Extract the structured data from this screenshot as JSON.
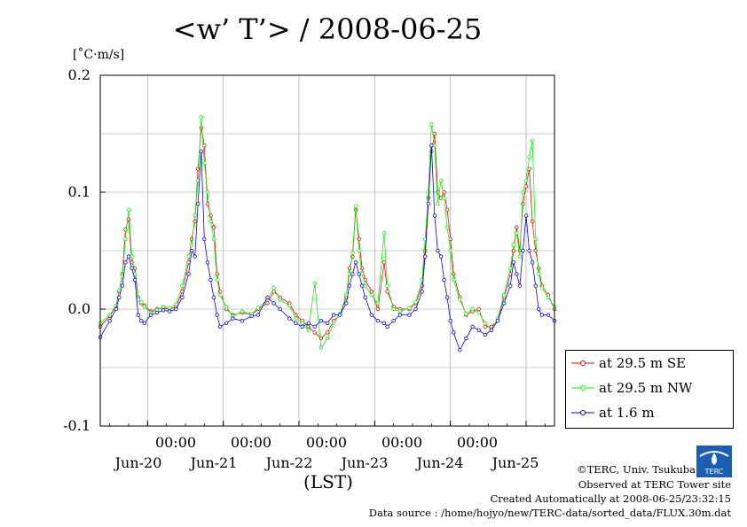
{
  "title": "<w’ T’> / 2008-06-25",
  "chart_data": {
    "type": "line",
    "title": "<w’ T’> / 2008-06-25",
    "ylabel": "[˚C·m/s]",
    "xlabel": "(LST)",
    "ylim": [
      -0.1,
      0.2
    ],
    "yticks": [
      "0.2",
      "0.1",
      "0.0",
      "-0.1"
    ],
    "ytick_values": [
      0.2,
      0.1,
      0.0,
      -0.1
    ],
    "xlim": [
      0,
      144
    ],
    "x_unit": "hours since 2008-06-19 09:00",
    "xtick_time_label": "00:00",
    "xticks": [
      {
        "hour": 15,
        "time": "00:00",
        "date": "Jun-20"
      },
      {
        "hour": 39,
        "time": "00:00",
        "date": "Jun-21"
      },
      {
        "hour": 63,
        "time": "00:00",
        "date": "Jun-22"
      },
      {
        "hour": 87,
        "time": "00:00",
        "date": "Jun-23"
      },
      {
        "hour": 111,
        "time": "00:00",
        "date": "Jun-24"
      },
      {
        "hour": 135,
        "time": "00:00",
        "date": "Jun-25"
      }
    ],
    "grid": true,
    "legend_position": "right-bottom",
    "series": [
      {
        "name": "at 29.5 m SE",
        "color": "#ff0000",
        "points": [
          [
            0,
            -0.015
          ],
          [
            3,
            -0.006
          ],
          [
            5,
            0.002
          ],
          [
            6,
            0.015
          ],
          [
            7,
            0.03
          ],
          [
            8,
            0.068
          ],
          [
            9,
            0.077
          ],
          [
            10,
            0.04
          ],
          [
            11,
            0.035
          ],
          [
            12,
            0.01
          ],
          [
            13,
            0.005
          ],
          [
            14,
            0.003
          ],
          [
            16,
            -0.002
          ],
          [
            18,
            0.0
          ],
          [
            20,
            0.001
          ],
          [
            22,
            0.0
          ],
          [
            24,
            0.002
          ],
          [
            26,
            0.015
          ],
          [
            28,
            0.04
          ],
          [
            29,
            0.06
          ],
          [
            30,
            0.075
          ],
          [
            31,
            0.12
          ],
          [
            32,
            0.155
          ],
          [
            33,
            0.14
          ],
          [
            34,
            0.09
          ],
          [
            35,
            0.08
          ],
          [
            36,
            0.07
          ],
          [
            37,
            0.03
          ],
          [
            38,
            0.015
          ],
          [
            40,
            0.0
          ],
          [
            42,
            -0.005
          ],
          [
            45,
            -0.003
          ],
          [
            48,
            -0.005
          ],
          [
            50,
            0.0
          ],
          [
            53,
            0.005
          ],
          [
            55,
            0.015
          ],
          [
            57,
            0.01
          ],
          [
            60,
            0.005
          ],
          [
            62,
            -0.005
          ],
          [
            64,
            -0.01
          ],
          [
            66,
            -0.015
          ],
          [
            68,
            -0.02
          ],
          [
            70,
            -0.025
          ],
          [
            72,
            -0.02
          ],
          [
            74,
            -0.01
          ],
          [
            76,
            -0.005
          ],
          [
            78,
            0.01
          ],
          [
            79,
            0.035
          ],
          [
            80,
            0.045
          ],
          [
            81,
            0.085
          ],
          [
            82,
            0.06
          ],
          [
            83,
            0.035
          ],
          [
            84,
            0.025
          ],
          [
            86,
            0.015
          ],
          [
            88,
            0.0
          ],
          [
            90,
            0.04
          ],
          [
            91,
            0.015
          ],
          [
            93,
            0.002
          ],
          [
            95,
            0.0
          ],
          [
            98,
            0.0
          ],
          [
            100,
            0.005
          ],
          [
            102,
            0.02
          ],
          [
            103,
            0.05
          ],
          [
            104,
            0.095
          ],
          [
            105,
            0.135
          ],
          [
            106,
            0.15
          ],
          [
            107,
            0.1
          ],
          [
            108,
            0.095
          ],
          [
            109,
            0.1
          ],
          [
            110,
            0.085
          ],
          [
            111,
            0.06
          ],
          [
            112,
            0.03
          ],
          [
            114,
            0.01
          ],
          [
            116,
            -0.005
          ],
          [
            118,
            -0.002
          ],
          [
            120,
            0.0
          ],
          [
            122,
            -0.015
          ],
          [
            124,
            -0.015
          ],
          [
            126,
            -0.01
          ],
          [
            128,
            0.01
          ],
          [
            130,
            0.03
          ],
          [
            131,
            0.05
          ],
          [
            132,
            0.07
          ],
          [
            133,
            0.05
          ],
          [
            134,
            0.09
          ],
          [
            135,
            0.105
          ],
          [
            136,
            0.12
          ],
          [
            137,
            0.075
          ],
          [
            138,
            0.05
          ],
          [
            139,
            0.035
          ],
          [
            140,
            0.02
          ],
          [
            142,
            0.012
          ],
          [
            144,
            0.0
          ]
        ]
      },
      {
        "name": "at 29.5 m NW",
        "color": "#00ff00",
        "points": [
          [
            0,
            -0.012
          ],
          [
            3,
            -0.005
          ],
          [
            5,
            0.003
          ],
          [
            6,
            0.016
          ],
          [
            7,
            0.028
          ],
          [
            8,
            0.06
          ],
          [
            9,
            0.085
          ],
          [
            10,
            0.045
          ],
          [
            11,
            0.03
          ],
          [
            12,
            0.008
          ],
          [
            13,
            0.006
          ],
          [
            14,
            0.002
          ],
          [
            16,
            -0.003
          ],
          [
            18,
            -0.001
          ],
          [
            20,
            0.002
          ],
          [
            22,
            0.001
          ],
          [
            24,
            0.004
          ],
          [
            26,
            0.02
          ],
          [
            28,
            0.045
          ],
          [
            29,
            0.055
          ],
          [
            30,
            0.08
          ],
          [
            31,
            0.11
          ],
          [
            32,
            0.164
          ],
          [
            33,
            0.125
          ],
          [
            34,
            0.1
          ],
          [
            35,
            0.075
          ],
          [
            36,
            0.06
          ],
          [
            37,
            0.025
          ],
          [
            38,
            0.012
          ],
          [
            40,
            0.002
          ],
          [
            42,
            -0.006
          ],
          [
            45,
            -0.002
          ],
          [
            48,
            -0.004
          ],
          [
            50,
            0.001
          ],
          [
            53,
            0.008
          ],
          [
            55,
            0.018
          ],
          [
            57,
            0.008
          ],
          [
            60,
            0.003
          ],
          [
            62,
            -0.008
          ],
          [
            64,
            -0.012
          ],
          [
            66,
            -0.018
          ],
          [
            68,
            0.022
          ],
          [
            70,
            -0.033
          ],
          [
            72,
            -0.025
          ],
          [
            74,
            -0.012
          ],
          [
            76,
            -0.004
          ],
          [
            78,
            0.012
          ],
          [
            79,
            0.03
          ],
          [
            80,
            0.048
          ],
          [
            81,
            0.088
          ],
          [
            82,
            0.05
          ],
          [
            83,
            0.03
          ],
          [
            84,
            0.02
          ],
          [
            86,
            0.012
          ],
          [
            88,
            0.005
          ],
          [
            90,
            0.065
          ],
          [
            91,
            0.02
          ],
          [
            93,
            0.0
          ],
          [
            95,
            -0.002
          ],
          [
            98,
            0.001
          ],
          [
            100,
            0.006
          ],
          [
            102,
            0.025
          ],
          [
            103,
            0.06
          ],
          [
            104,
            0.1
          ],
          [
            105,
            0.158
          ],
          [
            106,
            0.14
          ],
          [
            107,
            0.09
          ],
          [
            108,
            0.11
          ],
          [
            109,
            0.095
          ],
          [
            110,
            0.07
          ],
          [
            111,
            0.05
          ],
          [
            112,
            0.025
          ],
          [
            114,
            0.008
          ],
          [
            116,
            -0.004
          ],
          [
            118,
            0.0
          ],
          [
            120,
            -0.003
          ],
          [
            122,
            -0.012
          ],
          [
            124,
            -0.018
          ],
          [
            126,
            -0.008
          ],
          [
            128,
            0.012
          ],
          [
            130,
            0.035
          ],
          [
            131,
            0.055
          ],
          [
            132,
            0.065
          ],
          [
            133,
            0.045
          ],
          [
            134,
            0.1
          ],
          [
            135,
            0.11
          ],
          [
            136,
            0.13
          ],
          [
            137,
            0.144
          ],
          [
            138,
            0.06
          ],
          [
            139,
            0.03
          ],
          [
            140,
            0.018
          ],
          [
            142,
            0.01
          ],
          [
            144,
            0.002
          ]
        ]
      },
      {
        "name": "at 1.6 m",
        "color": "#0000ff",
        "points": [
          [
            0,
            -0.024
          ],
          [
            3,
            -0.01
          ],
          [
            5,
            0.0
          ],
          [
            6,
            0.01
          ],
          [
            7,
            0.02
          ],
          [
            8,
            0.04
          ],
          [
            9,
            0.045
          ],
          [
            10,
            0.035
          ],
          [
            11,
            0.025
          ],
          [
            12,
            -0.005
          ],
          [
            13,
            -0.01
          ],
          [
            14,
            -0.012
          ],
          [
            16,
            -0.005
          ],
          [
            18,
            -0.003
          ],
          [
            20,
            -0.001
          ],
          [
            22,
            -0.002
          ],
          [
            24,
            0.0
          ],
          [
            26,
            0.01
          ],
          [
            28,
            0.03
          ],
          [
            29,
            0.05
          ],
          [
            30,
            0.045
          ],
          [
            31,
            0.09
          ],
          [
            32,
            0.135
          ],
          [
            33,
            0.06
          ],
          [
            34,
            0.04
          ],
          [
            35,
            0.025
          ],
          [
            36,
            0.01
          ],
          [
            37,
            -0.005
          ],
          [
            38,
            -0.015
          ],
          [
            40,
            -0.012
          ],
          [
            42,
            -0.008
          ],
          [
            45,
            -0.01
          ],
          [
            48,
            -0.006
          ],
          [
            50,
            -0.005
          ],
          [
            53,
            0.01
          ],
          [
            55,
            0.005
          ],
          [
            57,
            0.0
          ],
          [
            60,
            -0.008
          ],
          [
            62,
            -0.012
          ],
          [
            64,
            -0.015
          ],
          [
            66,
            -0.012
          ],
          [
            68,
            -0.015
          ],
          [
            70,
            -0.01
          ],
          [
            72,
            -0.012
          ],
          [
            74,
            -0.005
          ],
          [
            76,
            -0.005
          ],
          [
            78,
            0.005
          ],
          [
            79,
            0.02
          ],
          [
            80,
            0.03
          ],
          [
            81,
            0.04
          ],
          [
            82,
            0.03
          ],
          [
            83,
            0.02
          ],
          [
            84,
            0.01
          ],
          [
            86,
            -0.005
          ],
          [
            88,
            -0.01
          ],
          [
            90,
            -0.012
          ],
          [
            91,
            -0.015
          ],
          [
            93,
            -0.01
          ],
          [
            95,
            -0.005
          ],
          [
            98,
            -0.005
          ],
          [
            100,
            0.0
          ],
          [
            102,
            0.015
          ],
          [
            103,
            0.045
          ],
          [
            104,
            0.09
          ],
          [
            105,
            0.14
          ],
          [
            106,
            0.08
          ],
          [
            107,
            0.05
          ],
          [
            108,
            0.045
          ],
          [
            109,
            0.025
          ],
          [
            110,
            0.01
          ],
          [
            111,
            -0.01
          ],
          [
            112,
            -0.02
          ],
          [
            114,
            -0.035
          ],
          [
            116,
            -0.025
          ],
          [
            118,
            -0.015
          ],
          [
            120,
            -0.018
          ],
          [
            122,
            -0.022
          ],
          [
            124,
            -0.018
          ],
          [
            126,
            -0.01
          ],
          [
            128,
            0.005
          ],
          [
            130,
            0.02
          ],
          [
            131,
            0.04
          ],
          [
            132,
            0.03
          ],
          [
            133,
            0.02
          ],
          [
            134,
            0.05
          ],
          [
            135,
            0.08
          ],
          [
            136,
            0.05
          ],
          [
            137,
            0.04
          ],
          [
            138,
            0.02
          ],
          [
            139,
            0.0
          ],
          [
            140,
            -0.005
          ],
          [
            142,
            -0.005
          ],
          [
            144,
            -0.01
          ]
        ]
      }
    ]
  },
  "credits": {
    "copyright": "©TERC, Univ. Tsukuba",
    "observed": "Observed at TERC Tower site",
    "created": "Created Automatically at 2008-06-25/23:32:15",
    "source": "Data source : /home/hojyo/new/TERC-data/sorted_data/FLUX.30m.dat",
    "logo_text": "TERC"
  }
}
